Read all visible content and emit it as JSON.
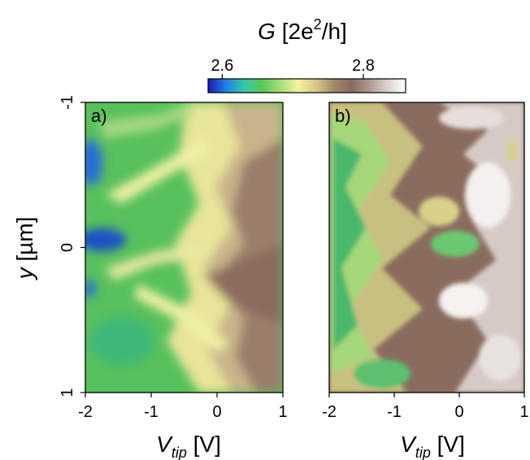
{
  "figure": {
    "colorbar": {
      "label_prefix": "G",
      "label_units": "[2e",
      "label_sup": "2",
      "label_suffix": "/h]",
      "ticks": [
        {
          "value": 2.6,
          "label": "2.6"
        },
        {
          "value": 2.8,
          "label": "2.8"
        }
      ],
      "range": [
        2.58,
        2.86
      ],
      "colors": [
        "#1a1ab8",
        "#1f7fe6",
        "#35c8a8",
        "#58c858",
        "#a8dc78",
        "#f2f2a0",
        "#d8c888",
        "#a08a6a",
        "#8a6a5c",
        "#b09a92",
        "#dcd2ce",
        "#ffffff"
      ]
    }
  },
  "chart_data": [
    {
      "type": "heatmap",
      "panel_label": "a)",
      "x_var": "V",
      "x_sub": "tip",
      "x_unit": "[V]",
      "y_var": "y",
      "y_unit": "[µm]",
      "xlim": [
        -2,
        1
      ],
      "ylim": [
        -1,
        1
      ],
      "y_inverted": true,
      "x_ticks": [
        {
          "value": -2,
          "label": "-2"
        },
        {
          "value": -1,
          "label": "-1"
        },
        {
          "value": 0,
          "label": "0"
        },
        {
          "value": 1,
          "label": "1"
        }
      ],
      "y_ticks": [
        {
          "value": -1,
          "label": "-1"
        },
        {
          "value": 0,
          "label": "0"
        },
        {
          "value": 1,
          "label": "1"
        }
      ],
      "description_values": "Conductance rises from ~2.6 (blue/green, left) to ~2.76 (brown, right) with chevron-shaped contours pointing left"
    },
    {
      "type": "heatmap",
      "panel_label": "b)",
      "x_var": "V",
      "x_sub": "tip",
      "x_unit": "[V]",
      "xlim": [
        -2,
        1
      ],
      "ylim": [
        -1,
        1
      ],
      "y_inverted": true,
      "x_ticks": [
        {
          "value": -2,
          "label": "-2"
        },
        {
          "value": -1,
          "label": "-1"
        },
        {
          "value": 0,
          "label": "0"
        },
        {
          "value": 1,
          "label": "1"
        }
      ],
      "description_values": "Irregular patchy conductance ~2.65 (green, left) to ~2.85 (white, right)"
    }
  ]
}
